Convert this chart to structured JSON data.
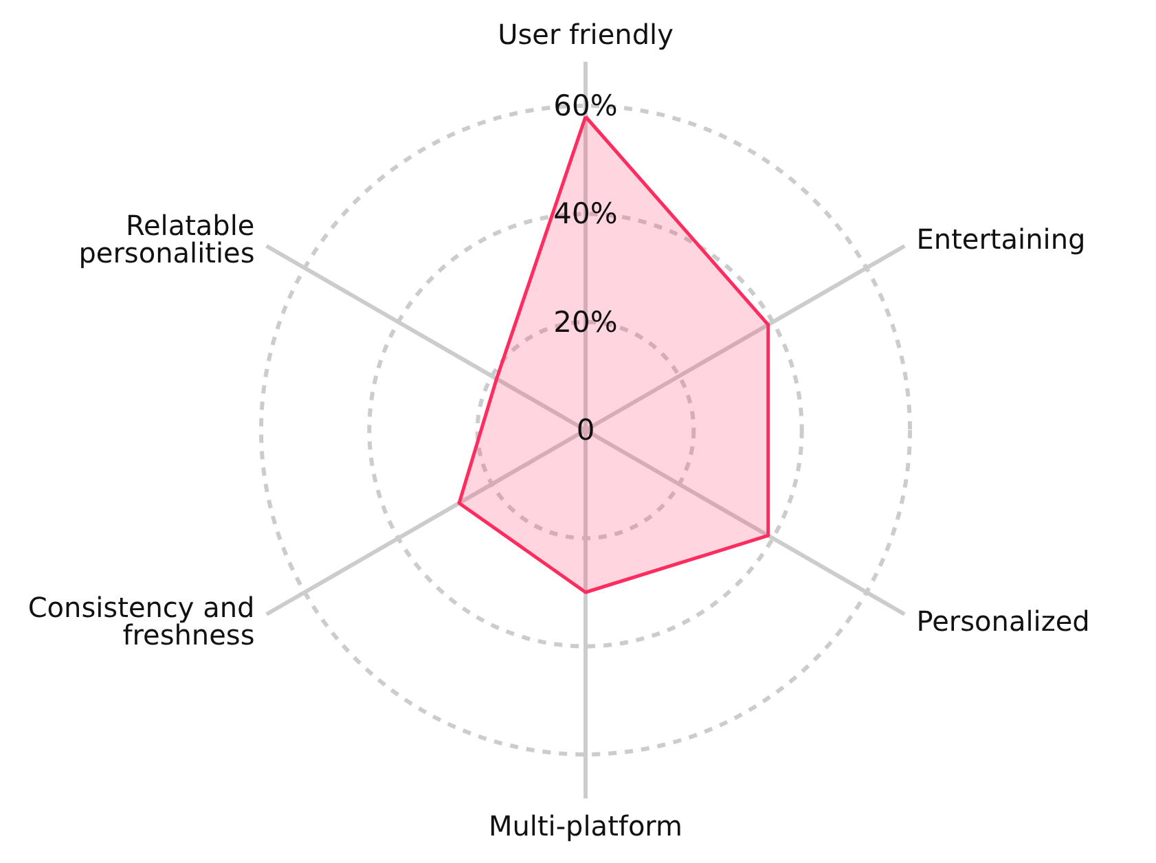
{
  "chart_data": {
    "type": "radar",
    "categories": [
      "User friendly",
      "Entertaining",
      "Personalized",
      "Multi-platform",
      "Consistency and freshness",
      "Relatable personalities"
    ],
    "series": [
      {
        "color": "#ff2d5f",
        "values": [
          58,
          39,
          39,
          30,
          27,
          19
        ]
      }
    ],
    "ylim": [
      0,
      60
    ],
    "yticks": [
      0,
      {
        "value": 20,
        "label": "20%"
      },
      {
        "value": 40,
        "label": "40%"
      },
      {
        "value": 60,
        "label": "60%"
      }
    ],
    "grid": true,
    "marker": "none",
    "line_style": "solid"
  }
}
